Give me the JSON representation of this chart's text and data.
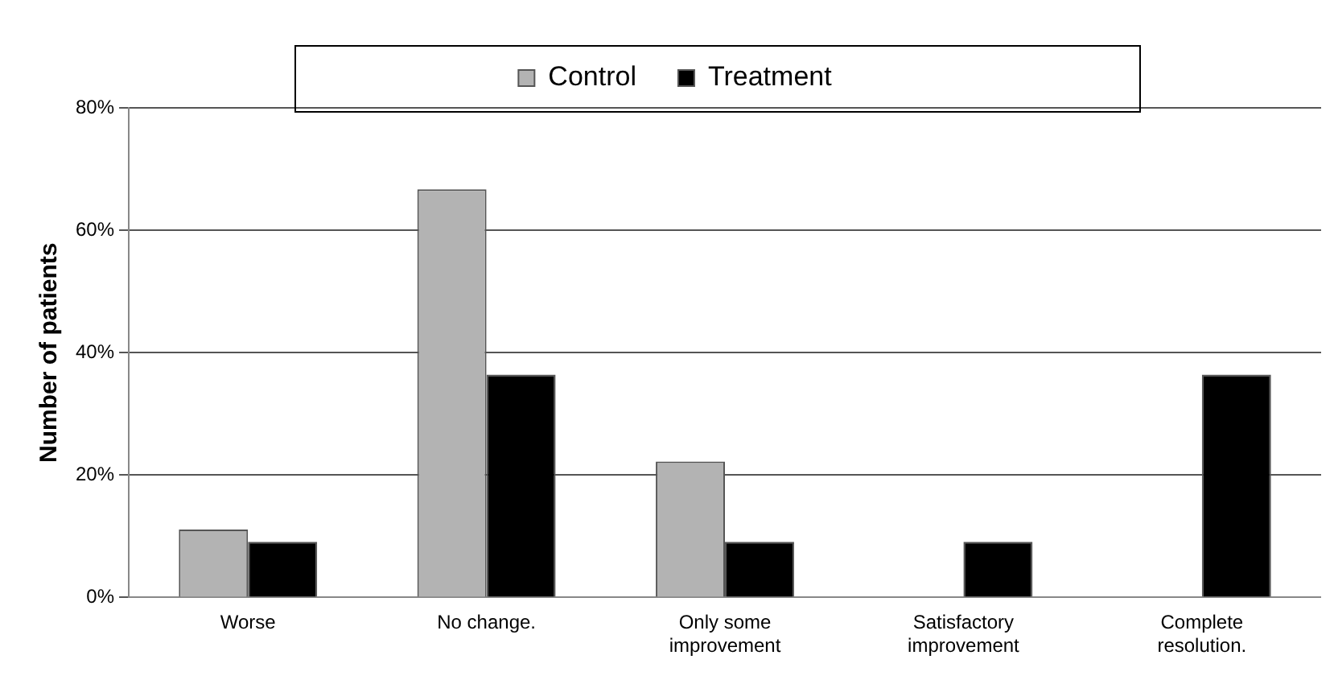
{
  "chart_data": {
    "type": "bar",
    "ylabel": "Number of patients",
    "categories": [
      "Worse",
      "No change.",
      "Only some improvement",
      "Satisfactory improvement",
      "Complete resolution."
    ],
    "series": [
      {
        "name": "Control",
        "color": "#b3b3b3",
        "values": [
          11.1,
          66.7,
          22.2,
          0,
          0
        ]
      },
      {
        "name": "Treatment",
        "color": "#000000",
        "values": [
          9.1,
          36.4,
          9.1,
          9.1,
          36.4
        ]
      }
    ],
    "ylim": [
      0,
      80
    ],
    "yticks": [
      {
        "value": 0,
        "label": "0%"
      },
      {
        "value": 20,
        "label": "20%"
      },
      {
        "value": 40,
        "label": "40%"
      },
      {
        "value": 60,
        "label": "60%"
      },
      {
        "value": 80,
        "label": "80%"
      }
    ],
    "grid": "y",
    "legend": "top"
  }
}
